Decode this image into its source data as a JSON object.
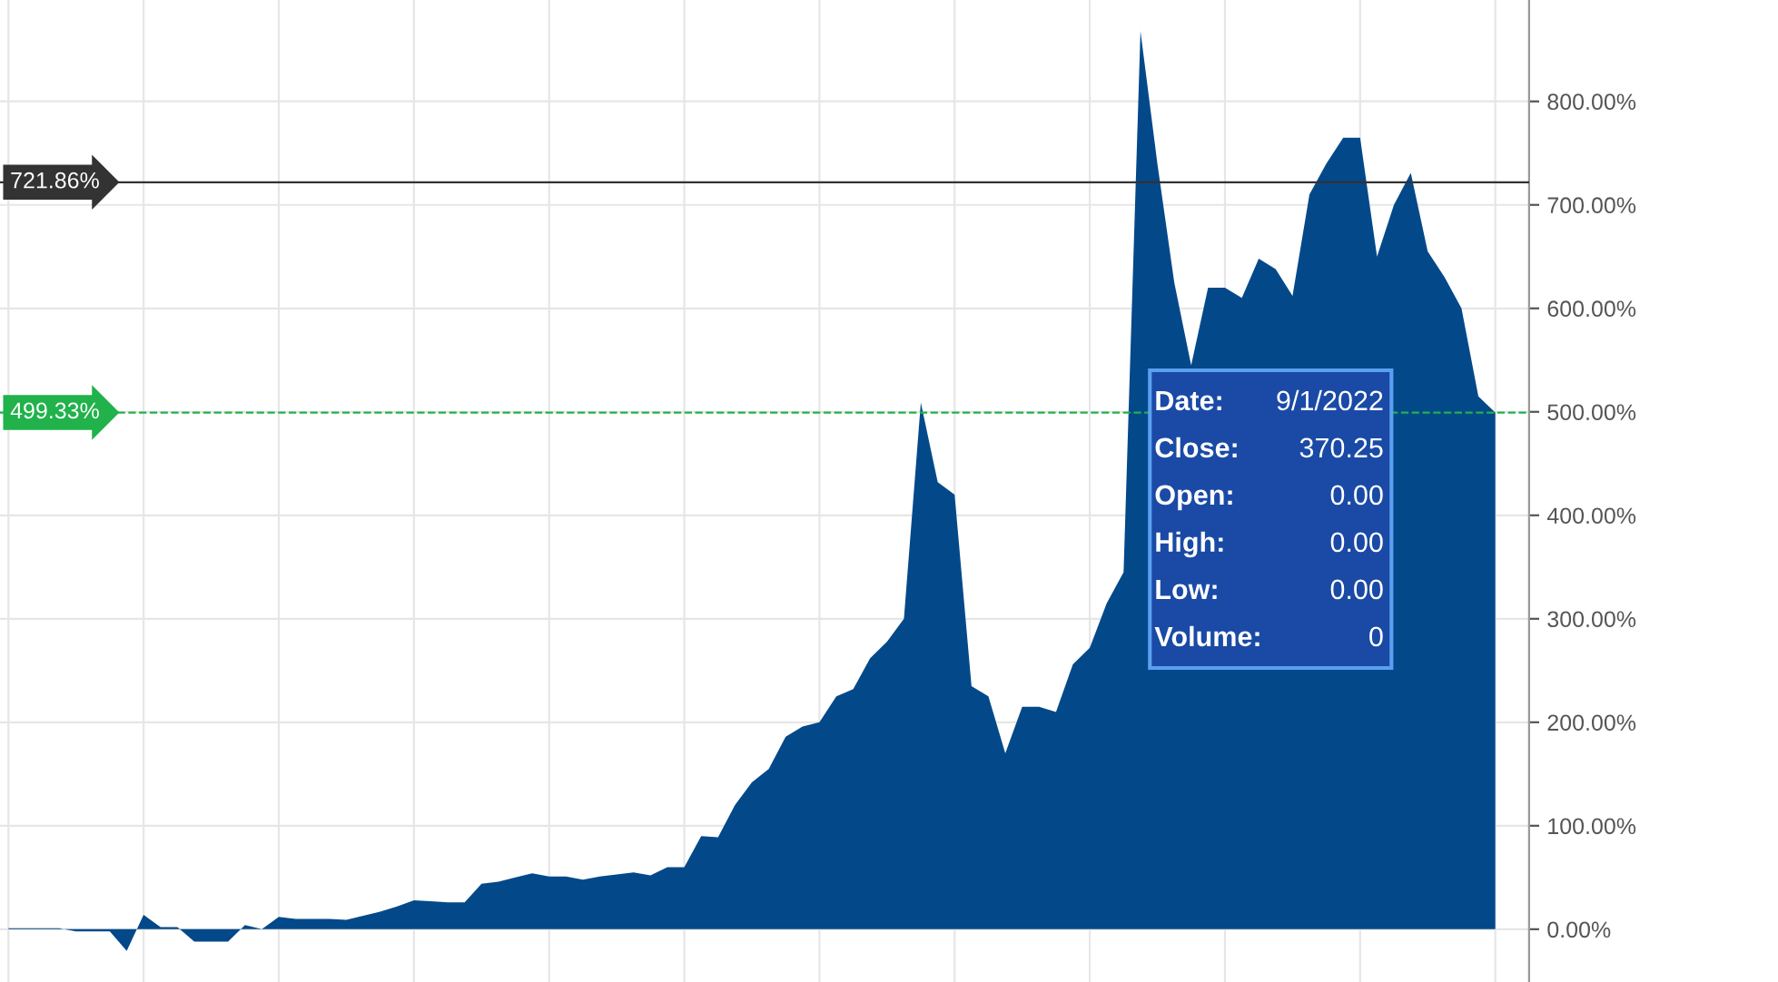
{
  "chart_data": {
    "type": "area",
    "categories": [
      null,
      null,
      null,
      null,
      null,
      null,
      null,
      null,
      null,
      null,
      null,
      null,
      null,
      null,
      null,
      null,
      null,
      null,
      null,
      null,
      null,
      null,
      null,
      null,
      null,
      null,
      null,
      null,
      null,
      null,
      null,
      null,
      null,
      null,
      null,
      null,
      null,
      null,
      null,
      null,
      null,
      null,
      null,
      null,
      null,
      null,
      null,
      null,
      null,
      null,
      null,
      null,
      null,
      null,
      null,
      null,
      null,
      null,
      null,
      null,
      null,
      null,
      null,
      null,
      null,
      null,
      null,
      null,
      null,
      null,
      null,
      null,
      null,
      null,
      null,
      null,
      null,
      null,
      null,
      null,
      null,
      null,
      null,
      null,
      null,
      null,
      null,
      null,
      null
    ],
    "series": [
      {
        "color": "#03498a",
        "values": [
          1,
          1,
          1,
          1,
          -2,
          -2,
          -2,
          -21,
          14,
          2,
          2,
          -12,
          -12,
          -12,
          4,
          0,
          12,
          10,
          10,
          10,
          9,
          13,
          17,
          22,
          28,
          27,
          26,
          26,
          44,
          46,
          50,
          54,
          51,
          51,
          48,
          51,
          53,
          55,
          52,
          60,
          60,
          90,
          89,
          120,
          142,
          155,
          186,
          196,
          200,
          225,
          232,
          262,
          278,
          300,
          509,
          432,
          420,
          235,
          225,
          170,
          215,
          215,
          210,
          256,
          272,
          315,
          345,
          868,
          740,
          625,
          545,
          620,
          620,
          610,
          648,
          638,
          612,
          710,
          740,
          765,
          765,
          650,
          700,
          731,
          655,
          630,
          600,
          515,
          499.33
        ]
      }
    ],
    "ylim": [
      -51,
      898
    ],
    "yticks": [
      {
        "value": 0,
        "label": "0.00%"
      },
      {
        "value": 100,
        "label": "100.00%"
      },
      {
        "value": 200,
        "label": "200.00%"
      },
      {
        "value": 300,
        "label": "300.00%"
      },
      {
        "value": 400,
        "label": "400.00%"
      },
      {
        "value": 500,
        "label": "500.00%"
      },
      {
        "value": 600,
        "label": "600.00%"
      },
      {
        "value": 700,
        "label": "700.00%"
      },
      {
        "value": 800,
        "label": "800.00%"
      }
    ],
    "tick_labels": "y",
    "grid": true,
    "ref_lines": [
      {
        "axis": "y",
        "value": 721.86,
        "label": "721.86%",
        "color": "#333333",
        "line_style": "solid"
      },
      {
        "axis": "y",
        "value": 499.33,
        "label": "499.33%",
        "color": "#21b24b",
        "line_style": "dashed"
      }
    ],
    "annotations": [
      "Date:",
      "9/1/2022",
      "Close:",
      "370.25",
      "Open:",
      "0.00",
      "High:",
      "0.00",
      "Low:",
      "0.00",
      "Volume:",
      "0"
    ]
  }
}
